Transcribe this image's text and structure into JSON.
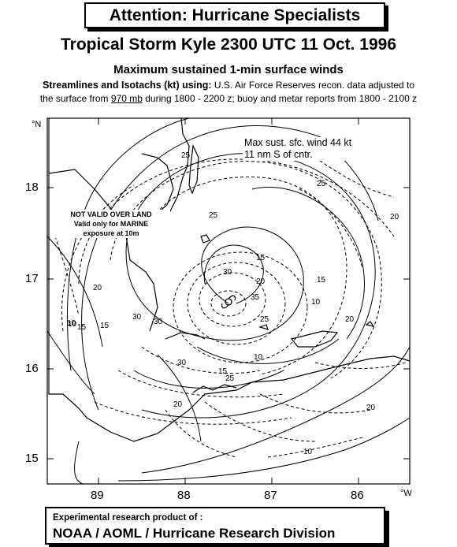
{
  "banner": "Attention:  Hurricane Specialists",
  "title": "Tropical Storm Kyle 2300 UTC 11 Oct. 1996",
  "subtitle": "Maximum sustained 1-min surface winds",
  "method": {
    "lead": "Streamlines and Isotachs (kt) using:",
    "line1_rest": " U.S. Air Force Reserves recon. data adjusted to",
    "line2_a": "the surface from ",
    "line2_level": "970 mb",
    "line2_b": " during 1800 - 2200 z; buoy and metar reports from 1800 - 2100 z"
  },
  "map": {
    "lat_unit": "°N",
    "lon_unit": "°W",
    "lat_ticks": [
      "18",
      "17",
      "16",
      "15"
    ],
    "lon_ticks": [
      "89",
      "88",
      "87",
      "86"
    ],
    "max_wind_note_1": "Max sust. sfc. wind 44 kt",
    "max_wind_note_2": "11 nm S of cntr.",
    "land_note_1": "NOT VALID OVER LAND",
    "land_note_2": "Valid only for MARINE",
    "land_note_3": "exposure at 10m",
    "isotach_labels": [
      "25",
      "25",
      "25",
      "20",
      "20",
      "20",
      "15",
      "15",
      "10",
      "10",
      "30",
      "30",
      "35",
      "30",
      "25",
      "20",
      "15",
      "10",
      "15",
      "20",
      "10",
      "30",
      "25",
      "15",
      "20",
      "10"
    ],
    "colors": {
      "land": "#000000",
      "isotach": "#000000",
      "streamline": "#000000"
    }
  },
  "footer": {
    "line1": "Experimental research product of :",
    "line2": "NOAA / AOML / Hurricane Research Division"
  }
}
